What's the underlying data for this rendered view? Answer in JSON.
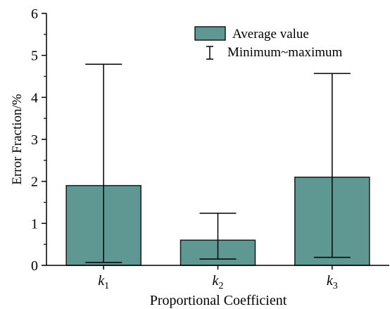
{
  "chart_data": {
    "type": "bar",
    "title": "",
    "xlabel": "Proportional Coefficient",
    "ylabel": "Error Fraction/%",
    "categories": [
      {
        "base": "k",
        "sub": "1"
      },
      {
        "base": "k",
        "sub": "2"
      },
      {
        "base": "k",
        "sub": "3"
      }
    ],
    "series": [
      {
        "name": "Average value",
        "values": [
          1.9,
          0.6,
          2.1
        ],
        "min": [
          0.07,
          0.15,
          0.19
        ],
        "max": [
          4.79,
          1.24,
          4.57
        ]
      }
    ],
    "error_bar_label": "Minimum~maximum",
    "ylim": [
      0,
      6
    ],
    "yticks": [
      "0",
      "1",
      "2",
      "3",
      "4",
      "5",
      "6"
    ],
    "grid": false,
    "legend_position": "top-right",
    "colors": {
      "bar_fill": "#5f9893",
      "bar_stroke": "#1a1a1a",
      "axis": "#000000",
      "error_bar": "#000000"
    }
  }
}
